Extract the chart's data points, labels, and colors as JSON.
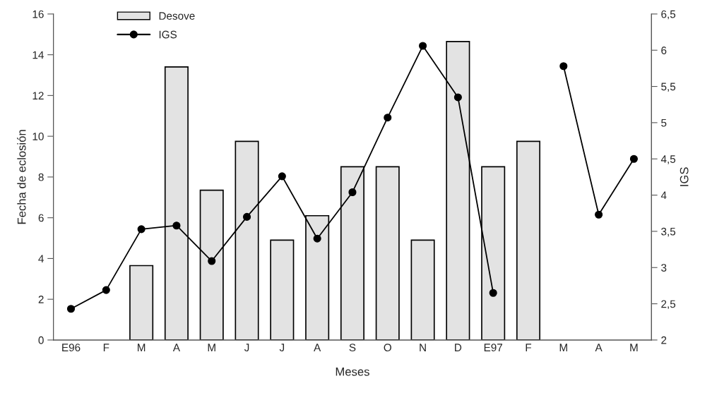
{
  "chart_data": {
    "type": "bar",
    "xlabel": "Meses",
    "ylabel": "Fecha de eclosión",
    "y2label": "IGS",
    "categories": [
      "E96",
      "F",
      "M",
      "A",
      "M",
      "J",
      "J",
      "A",
      "S",
      "O",
      "N",
      "D",
      "E97",
      "F",
      "M",
      "A",
      "M"
    ],
    "series": [
      {
        "name": "Desove",
        "color": "#e3e3e3",
        "values": [
          null,
          null,
          3.65,
          13.4,
          7.35,
          9.75,
          4.9,
          6.1,
          8.5,
          8.5,
          4.9,
          14.65,
          8.5,
          9.75,
          null,
          null,
          null
        ]
      },
      {
        "name": "IGS",
        "type": "line",
        "axis": "y2",
        "color": "#000000",
        "marker": "circle",
        "line_style": "solid",
        "values": [
          2.43,
          2.69,
          3.53,
          3.58,
          3.09,
          3.7,
          4.26,
          3.4,
          4.04,
          5.07,
          6.06,
          5.35,
          2.65,
          null,
          5.78,
          3.73,
          4.5
        ]
      }
    ],
    "ylim": [
      0,
      16
    ],
    "yticks": [
      0,
      2,
      4,
      6,
      8,
      10,
      12,
      14,
      16
    ],
    "y2lim": [
      2,
      6.5
    ],
    "y2ticks": [
      2,
      {
        "value": 2.5,
        "label": "2,5"
      },
      3,
      {
        "value": 3.5,
        "label": "3,5"
      },
      4,
      {
        "value": 4.5,
        "label": "4,5"
      },
      5,
      {
        "value": 5.5,
        "label": "5,5"
      },
      6,
      {
        "value": 6.5,
        "label": "6,5"
      }
    ],
    "grid": false,
    "legend": "top left"
  }
}
